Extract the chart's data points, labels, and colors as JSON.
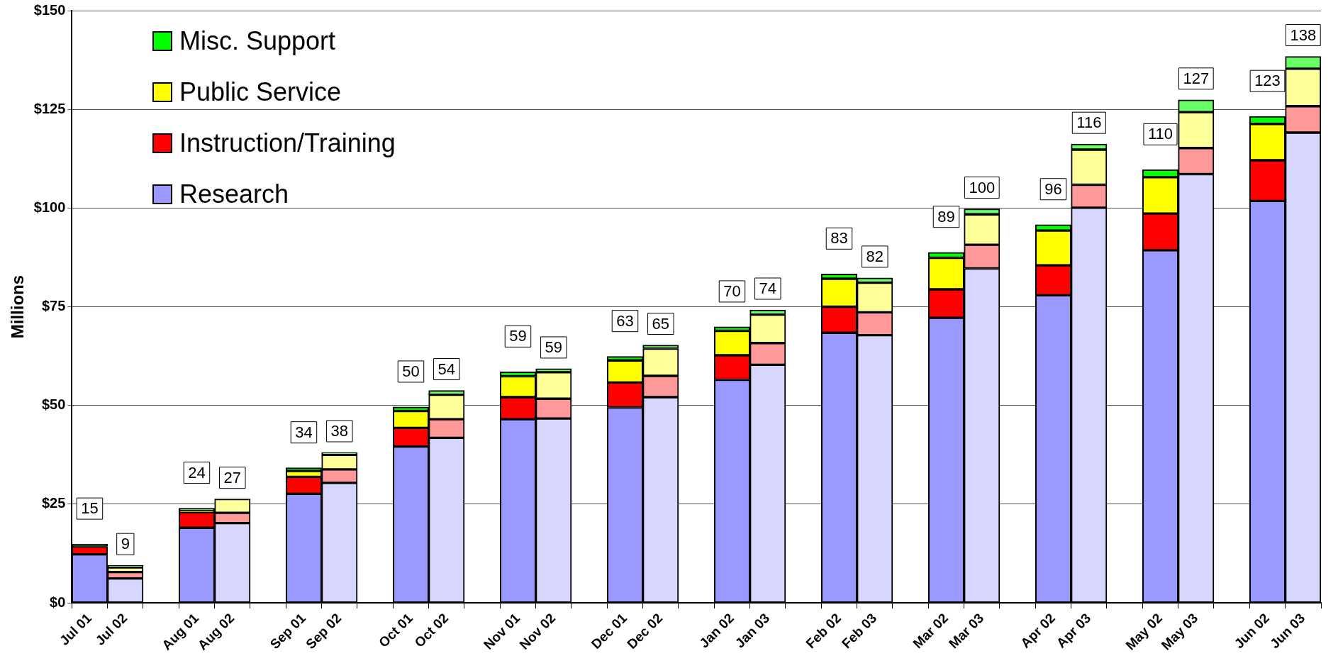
{
  "chart_data": {
    "type": "bar",
    "stacked": true,
    "ylabel": "Millions",
    "grid": "y",
    "legend": "top left",
    "categories": [
      "Jul 01",
      "Jul 02",
      null,
      "Aug 01",
      "Aug 02",
      null,
      "Sep 01",
      "Sep 02",
      null,
      "Oct 01",
      "Oct 02",
      null,
      "Nov 01",
      "Nov 02",
      null,
      "Dec 01",
      "Dec 02",
      null,
      "Jan 02",
      "Jan 03",
      null,
      "Feb 02",
      "Feb 03",
      null,
      "Mar 02",
      "Mar 03",
      null,
      "Apr 02",
      "Apr 03",
      null,
      "May 02",
      "May 03",
      null,
      "Jun 02",
      "Jun 03"
    ],
    "ylim": [
      0,
      150
    ],
    "yticks": [
      {
        "value": 0,
        "label": "$0"
      },
      {
        "value": 25,
        "label": "$25"
      },
      {
        "value": 50,
        "label": "$50"
      },
      {
        "value": 75,
        "label": "$75"
      },
      {
        "value": 100,
        "label": "$100"
      },
      {
        "value": 125,
        "label": "$125"
      },
      {
        "value": 150,
        "label": "$150"
      }
    ],
    "series": [
      {
        "name": "Research",
        "color": "#9999ff",
        "colors": [
          "#9999ff",
          "#d6d6ff",
          null,
          "#9999ff",
          "#d6d6ff",
          null,
          "#9999ff",
          "#d6d6ff",
          null,
          "#9999ff",
          "#d6d6ff",
          null,
          "#9999ff",
          "#d6d6ff",
          null,
          "#9999ff",
          "#d6d6ff",
          null,
          "#9999ff",
          "#d6d6ff",
          null,
          "#9999ff",
          "#d6d6ff",
          null,
          "#9999ff",
          "#d6d6ff",
          null,
          "#9999ff",
          "#d6d6ff",
          null,
          "#9999ff",
          "#d6d6ff",
          null,
          "#9999ff",
          "#d6d6ff"
        ],
        "values": [
          12.3,
          6.2,
          null,
          19,
          20.2,
          null,
          27.6,
          30.4,
          null,
          39.6,
          41.8,
          null,
          46.5,
          46.7,
          null,
          49.5,
          52.1,
          null,
          56.5,
          60.3,
          null,
          68.4,
          67.8,
          null,
          72.2,
          84.7,
          null,
          77.9,
          100.1,
          null,
          89.3,
          108.6,
          null,
          101.8,
          119.1
        ]
      },
      {
        "name": "Instruction/Training",
        "color": "#ff0000",
        "colors": [
          "#ff0000",
          "#ff9999",
          null,
          "#ff0000",
          "#ff9999",
          null,
          "#ff0000",
          "#ff9999",
          null,
          "#ff0000",
          "#ff9999",
          null,
          "#ff0000",
          "#ff9999",
          null,
          "#ff0000",
          "#ff9999",
          null,
          "#ff0000",
          "#ff9999",
          null,
          "#ff0000",
          "#ff9999",
          null,
          "#ff0000",
          "#ff9999",
          null,
          "#ff0000",
          "#ff9999",
          null,
          "#ff0000",
          "#ff9999",
          null,
          "#ff0000",
          "#ff9999"
        ],
        "values": [
          2,
          1.6,
          null,
          4,
          2.6,
          null,
          4.3,
          3.4,
          null,
          4.7,
          4.7,
          null,
          5.6,
          5,
          null,
          6.3,
          5.4,
          null,
          6.2,
          5.5,
          null,
          6.6,
          5.8,
          null,
          7.2,
          6,
          null,
          7.6,
          5.8,
          null,
          9.3,
          6.6,
          null,
          10.3,
          6.7
        ]
      },
      {
        "name": "Public Service",
        "color": "#ffff00",
        "colors": [
          "#ffff00",
          "#ffff99",
          null,
          "#ffff00",
          "#ffff99",
          null,
          "#ffff00",
          "#ffff99",
          null,
          "#ffff00",
          "#ffff99",
          null,
          "#ffff00",
          "#ffff99",
          null,
          "#ffff00",
          "#ffff99",
          null,
          "#ffff00",
          "#ffff99",
          null,
          "#ffff00",
          "#ffff99",
          null,
          "#ffff00",
          "#ffff99",
          null,
          "#ffff00",
          "#ffff99",
          null,
          "#ffff00",
          "#ffff99",
          null,
          "#ffff00",
          "#ffff99"
        ],
        "values": [
          null,
          1.2,
          null,
          0.3,
          3.5,
          null,
          1.5,
          3.7,
          null,
          4.3,
          6.2,
          null,
          5.3,
          6.7,
          null,
          5.6,
          6.9,
          null,
          6.2,
          7.2,
          null,
          7.1,
          7.5,
          null,
          8,
          7.7,
          null,
          8.8,
          8.9,
          null,
          9.2,
          9.1,
          null,
          9.2,
          9.5
        ]
      },
      {
        "name": "Misc. Support",
        "color": "#00ff00",
        "colors": [
          "#00ff00",
          "#66ff66",
          null,
          "#00ff00",
          "#66ff66",
          null,
          "#00ff00",
          "#66ff66",
          null,
          "#00ff00",
          "#66ff66",
          null,
          "#00ff00",
          "#66ff66",
          null,
          "#00ff00",
          "#66ff66",
          null,
          "#00ff00",
          "#66ff66",
          null,
          "#00ff00",
          "#66ff66",
          null,
          "#00ff00",
          "#66ff66",
          null,
          "#00ff00",
          "#66ff66",
          null,
          "#00ff00",
          "#66ff66",
          null,
          "#00ff00",
          "#66ff66"
        ],
        "values": [
          0.6,
          0.5,
          null,
          0.7,
          null,
          null,
          0.8,
          0.6,
          null,
          1,
          1.1,
          null,
          1.1,
          0.9,
          null,
          1,
          0.9,
          null,
          1,
          1.2,
          null,
          1.2,
          1.2,
          null,
          1.4,
          1.4,
          null,
          1.5,
          1.4,
          null,
          1.9,
          3.1,
          null,
          1.9,
          3.1
        ]
      }
    ],
    "totals": [
      "15",
      "9",
      null,
      "24",
      "27",
      null,
      "34",
      "38",
      null,
      "50",
      "54",
      null,
      "59",
      "59",
      null,
      "63",
      "65",
      null,
      "70",
      "74",
      null,
      "83",
      "82",
      null,
      "89",
      "100",
      null,
      "96",
      "116",
      null,
      "110",
      "127",
      null,
      "123",
      "138"
    ]
  }
}
